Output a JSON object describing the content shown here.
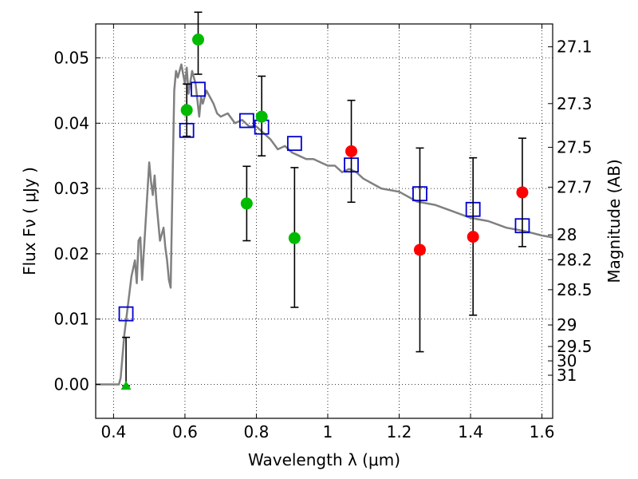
{
  "chart_data": {
    "type": "scatter",
    "xlabel": "Wavelength  λ (μm)",
    "ylabel": "Flux  Fν  ( μJy )",
    "ylabel_right": "Magnitude (AB)",
    "xlim": [
      0.35,
      1.63
    ],
    "ylim": [
      -0.0052,
      0.0552
    ],
    "grid": true,
    "x_ticks": [
      0.4,
      0.6,
      0.8,
      1.0,
      1.2,
      1.4,
      1.6
    ],
    "x_tick_labels": [
      "0.4",
      "0.6",
      "0.8",
      "1",
      "1.2",
      "1.4",
      "1.6"
    ],
    "y_ticks": [
      0.0,
      0.01,
      0.02,
      0.03,
      0.04,
      0.05
    ],
    "y_tick_labels": [
      "0.00",
      "0.01",
      "0.02",
      "0.03",
      "0.04",
      "0.05"
    ],
    "right_ticks": [
      {
        "label": "27.1",
        "flux": 0.0517
      },
      {
        "label": "27.3",
        "flux": 0.043
      },
      {
        "label": "27.5",
        "flux": 0.0363
      },
      {
        "label": "27.7",
        "flux": 0.0302
      },
      {
        "label": "28",
        "flux": 0.0229
      },
      {
        "label": "28.2",
        "flux": 0.0191
      },
      {
        "label": "28.5",
        "flux": 0.0145
      },
      {
        "label": "29",
        "flux": 0.0091
      },
      {
        "label": "29.5",
        "flux": 0.0058
      },
      {
        "label": "30",
        "flux": 0.0036
      },
      {
        "label": "31",
        "flux": 0.0014
      }
    ],
    "series": [
      {
        "kind": "line",
        "color": "#808080",
        "x": [
          0.35,
          0.415,
          0.42,
          0.43,
          0.44,
          0.45,
          0.46,
          0.465,
          0.47,
          0.475,
          0.48,
          0.49,
          0.5,
          0.505,
          0.51,
          0.515,
          0.52,
          0.53,
          0.54,
          0.545,
          0.55,
          0.555,
          0.56,
          0.565,
          0.57,
          0.575,
          0.58,
          0.59,
          0.6,
          0.605,
          0.61,
          0.62,
          0.63,
          0.64,
          0.645,
          0.65,
          0.66,
          0.67,
          0.68,
          0.69,
          0.7,
          0.72,
          0.74,
          0.76,
          0.78,
          0.8,
          0.82,
          0.84,
          0.86,
          0.88,
          0.9,
          0.92,
          0.94,
          0.96,
          0.98,
          1.0,
          1.02,
          1.04,
          1.06,
          1.08,
          1.1,
          1.15,
          1.2,
          1.25,
          1.3,
          1.35,
          1.4,
          1.45,
          1.5,
          1.55,
          1.6,
          1.63
        ],
        "y": [
          0.0,
          0.0,
          0.001,
          0.0075,
          0.012,
          0.0165,
          0.019,
          0.0155,
          0.022,
          0.0225,
          0.016,
          0.025,
          0.034,
          0.031,
          0.029,
          0.032,
          0.028,
          0.022,
          0.024,
          0.021,
          0.019,
          0.016,
          0.0148,
          0.03,
          0.045,
          0.048,
          0.047,
          0.049,
          0.046,
          0.0485,
          0.0445,
          0.048,
          0.046,
          0.041,
          0.044,
          0.043,
          0.045,
          0.044,
          0.043,
          0.0415,
          0.041,
          0.0415,
          0.04,
          0.0405,
          0.0395,
          0.0395,
          0.0385,
          0.0375,
          0.036,
          0.0365,
          0.0355,
          0.035,
          0.0345,
          0.0345,
          0.034,
          0.0335,
          0.0335,
          0.0325,
          0.033,
          0.0325,
          0.0315,
          0.03,
          0.0295,
          0.028,
          0.0275,
          0.0265,
          0.0255,
          0.025,
          0.024,
          0.0235,
          0.0228,
          0.0225
        ]
      },
      {
        "kind": "open-square",
        "color": "#0000cc",
        "x": [
          0.435,
          0.605,
          0.637,
          0.773,
          0.815,
          0.907,
          1.066,
          1.258,
          1.407,
          1.545
        ],
        "y": [
          0.0108,
          0.0389,
          0.0452,
          0.0404,
          0.0394,
          0.0369,
          0.0336,
          0.0292,
          0.0268,
          0.0243
        ]
      },
      {
        "kind": "filled-circle",
        "color": "#00bb00",
        "x": [
          0.605,
          0.637,
          0.773,
          0.815,
          0.907
        ],
        "y": [
          0.042,
          0.0528,
          0.0277,
          0.041,
          0.0224
        ],
        "yerr_low": [
          0.004,
          0.0053,
          0.0057,
          0.006,
          0.0106
        ],
        "yerr_high": [
          0.004,
          0.0042,
          0.0057,
          0.0062,
          0.0108
        ]
      },
      {
        "kind": "filled-circle",
        "color": "#ff0000",
        "x": [
          1.066,
          1.258,
          1.407,
          1.545
        ],
        "y": [
          0.0357,
          0.0206,
          0.0226,
          0.0294
        ],
        "yerr_low": [
          0.0078,
          0.0156,
          0.012,
          0.0083
        ],
        "yerr_high": [
          0.0078,
          0.0156,
          0.0121,
          0.0083
        ]
      },
      {
        "kind": "filled-triangle",
        "color": "#00bb00",
        "x": [
          0.435
        ],
        "y": [
          -0.0002
        ],
        "yerr_high": [
          0.0074
        ]
      }
    ]
  }
}
